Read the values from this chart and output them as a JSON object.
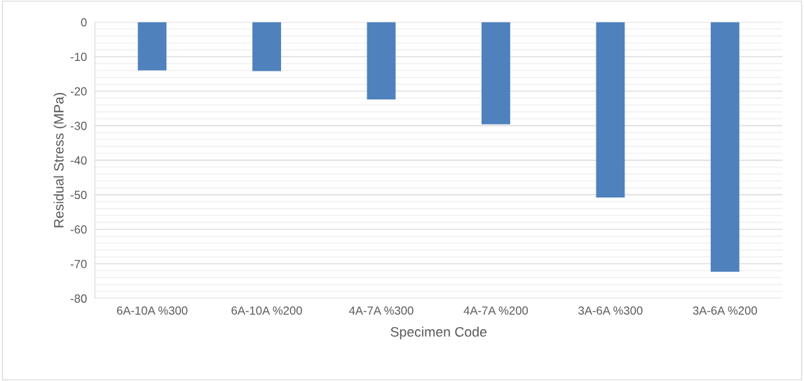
{
  "chart_data": {
    "type": "bar",
    "xlabel": "Specimen Code",
    "ylabel": "Residual Stress (MPa)",
    "categories": [
      "6A-10A %300",
      "6A-10A %200",
      "4A-7A %300",
      "4A-7A %200",
      "3A-6A %300",
      "3A-6A %200"
    ],
    "values": [
      -14.0,
      -14.2,
      -22.4,
      -29.6,
      -50.8,
      -72.3
    ],
    "color": "#4f81bd",
    "ylim": [
      -80,
      0
    ],
    "yticks": [
      -80,
      {
        "value": -78,
        "label": null
      },
      {
        "value": -76,
        "label": null
      },
      {
        "value": -74,
        "label": null
      },
      {
        "value": -72,
        "label": null
      },
      -70,
      {
        "value": -68,
        "label": null
      },
      {
        "value": -66,
        "label": null
      },
      {
        "value": -64,
        "label": null
      },
      {
        "value": -62,
        "label": null
      },
      -60,
      {
        "value": -58,
        "label": null
      },
      {
        "value": -56,
        "label": null
      },
      {
        "value": -54,
        "label": null
      },
      {
        "value": -52,
        "label": null
      },
      -50,
      {
        "value": -48,
        "label": null
      },
      {
        "value": -46,
        "label": null
      },
      {
        "value": -44,
        "label": null
      },
      {
        "value": -42,
        "label": null
      },
      -40,
      {
        "value": -38,
        "label": null
      },
      {
        "value": -36,
        "label": null
      },
      {
        "value": -34,
        "label": null
      },
      {
        "value": -32,
        "label": null
      },
      -30,
      {
        "value": -28,
        "label": null
      },
      {
        "value": -26,
        "label": null
      },
      {
        "value": -24,
        "label": null
      },
      {
        "value": -22,
        "label": null
      },
      -20,
      {
        "value": -18,
        "label": null
      },
      {
        "value": -16,
        "label": null
      },
      {
        "value": -14,
        "label": null
      },
      {
        "value": -12,
        "label": null
      },
      -10,
      {
        "value": -8,
        "label": null
      },
      {
        "value": -6,
        "label": null
      },
      {
        "value": -4,
        "label": null
      },
      {
        "value": -2,
        "label": null
      },
      0
    ],
    "grid": "y",
    "legend": false
  }
}
